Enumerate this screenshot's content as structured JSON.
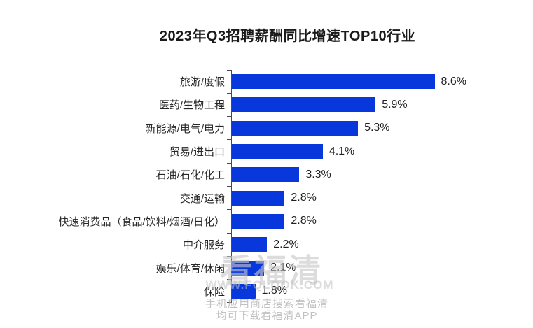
{
  "chart_data": {
    "type": "bar",
    "orientation": "horizontal",
    "title": "2023年Q3招聘薪酬同比增速TOP10行业",
    "categories": [
      "旅游/度假",
      "医药/生物工程",
      "新能源/电气/电力",
      "贸易/进出口",
      "石油/石化/化工",
      "交通/运输",
      "快速消费品（食品/饮料/烟酒/日化）",
      "中介服务",
      "娱乐/体育/休闲",
      "保险"
    ],
    "values": [
      8.6,
      5.9,
      5.3,
      4.1,
      3.3,
      2.8,
      2.8,
      2.2,
      2.1,
      1.8
    ],
    "value_labels": [
      "8.6%",
      "5.9%",
      "5.3%",
      "4.1%",
      "3.3%",
      "2.8%",
      "2.8%",
      "2.2%",
      "2.1%",
      "1.8%"
    ],
    "unit": "%",
    "xlim": [
      1.0,
      9.0
    ],
    "grid": false,
    "legend": false,
    "bar_color": "#0837DC",
    "axis_color": "#4a4a4a",
    "text_color": "#1f1f1f"
  },
  "watermark": {
    "brand": "看福清",
    "url": "WWW.FQLOOK.COM",
    "line1": "手机应用商店搜索看福清",
    "line2": "均可下载看福清APP",
    "color": "#c6c6c6"
  }
}
